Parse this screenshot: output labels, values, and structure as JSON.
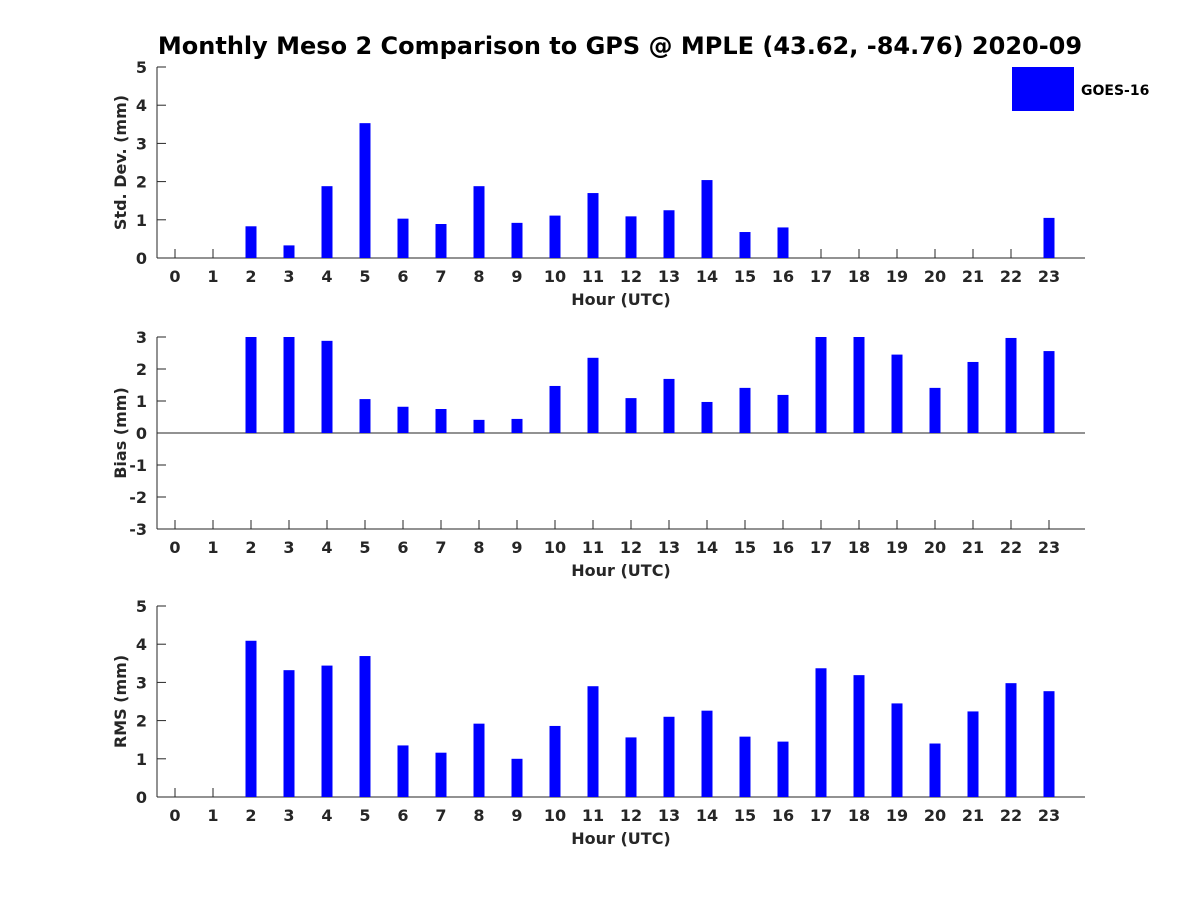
{
  "title": "Monthly Meso 2 Comparison to GPS @ MPLE (43.62, -84.76) 2020-09",
  "colors": {
    "bar": "#0000ff",
    "axis": "#262626",
    "background": "#ffffff"
  },
  "legend": {
    "label": "GOES-16",
    "placement": "top-right"
  },
  "chart_data": [
    {
      "type": "bar",
      "title": "Monthly Meso 2 Comparison to GPS @ MPLE (43.62, -84.76) 2020-09",
      "xlabel": "Hour (UTC)",
      "ylabel": "Std. Dev. (mm)",
      "ylim": [
        0,
        5
      ],
      "yticks": [
        0,
        1,
        2,
        3,
        4,
        5
      ],
      "categories": [
        "0",
        "1",
        "2",
        "3",
        "4",
        "5",
        "6",
        "7",
        "8",
        "9",
        "10",
        "11",
        "12",
        "13",
        "14",
        "15",
        "16",
        "17",
        "18",
        "19",
        "20",
        "21",
        "22",
        "23"
      ],
      "series": [
        {
          "name": "GOES-16",
          "values": [
            null,
            null,
            0.83,
            0.33,
            1.88,
            3.53,
            1.03,
            0.89,
            1.88,
            0.92,
            1.11,
            1.7,
            1.09,
            1.25,
            2.04,
            0.68,
            0.8,
            null,
            null,
            null,
            null,
            null,
            null,
            1.05
          ]
        }
      ]
    },
    {
      "type": "bar",
      "xlabel": "Hour (UTC)",
      "ylabel": "Bias (mm)",
      "ylim": [
        -3,
        3
      ],
      "yticks": [
        -3,
        -2,
        -1,
        0,
        1,
        2,
        3
      ],
      "categories": [
        "0",
        "1",
        "2",
        "3",
        "4",
        "5",
        "6",
        "7",
        "8",
        "9",
        "10",
        "11",
        "12",
        "13",
        "14",
        "15",
        "16",
        "17",
        "18",
        "19",
        "20",
        "21",
        "22",
        "23"
      ],
      "series": [
        {
          "name": "GOES-16",
          "values": [
            null,
            null,
            3.0,
            3.0,
            2.88,
            1.06,
            0.82,
            0.75,
            0.41,
            0.44,
            1.47,
            2.35,
            1.09,
            1.69,
            0.97,
            1.41,
            1.19,
            3.0,
            3.0,
            2.45,
            1.41,
            2.22,
            2.97,
            2.56
          ]
        }
      ]
    },
    {
      "type": "bar",
      "xlabel": "Hour (UTC)",
      "ylabel": "RMS (mm)",
      "ylim": [
        0,
        5
      ],
      "yticks": [
        0,
        1,
        2,
        3,
        4,
        5
      ],
      "categories": [
        "0",
        "1",
        "2",
        "3",
        "4",
        "5",
        "6",
        "7",
        "8",
        "9",
        "10",
        "11",
        "12",
        "13",
        "14",
        "15",
        "16",
        "17",
        "18",
        "19",
        "20",
        "21",
        "22",
        "23"
      ],
      "series": [
        {
          "name": "GOES-16",
          "values": [
            null,
            null,
            4.09,
            3.32,
            3.44,
            3.69,
            1.35,
            1.16,
            1.92,
            1.0,
            1.86,
            2.9,
            1.56,
            2.1,
            2.26,
            1.58,
            1.45,
            3.37,
            3.19,
            2.45,
            1.4,
            2.24,
            2.98,
            2.77
          ]
        }
      ]
    }
  ]
}
